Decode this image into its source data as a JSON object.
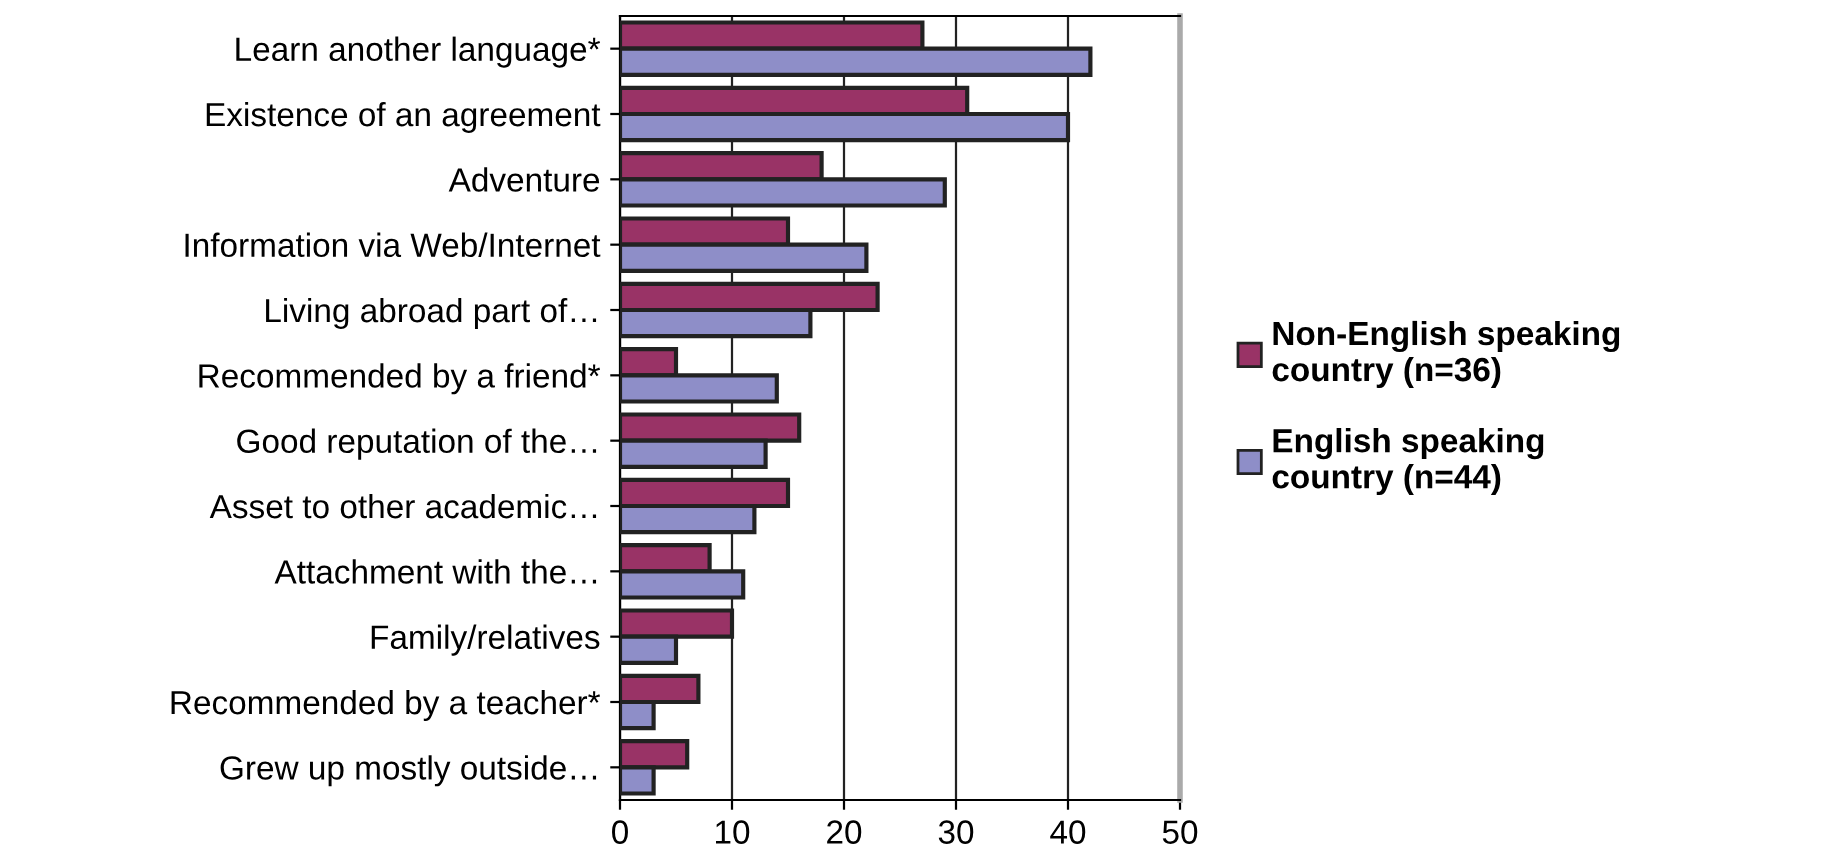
{
  "chart_data": {
    "type": "bar",
    "orientation": "horizontal",
    "categories": [
      "Learn another language*",
      "Existence of an agreement",
      "Adventure",
      "Information via Web/Internet",
      "Living abroad part of…",
      "Recommended by a friend*",
      "Good reputation of the…",
      "Asset to other academic…",
      "Attachment with the…",
      "Family/relatives",
      "Recommended by a teacher*",
      "Grew up mostly outside…"
    ],
    "series": [
      {
        "name": "Non-English speaking country (n=36)",
        "color": "#993366",
        "values": [
          27,
          31,
          18,
          15,
          23,
          5,
          16,
          15,
          8,
          10,
          7,
          6
        ]
      },
      {
        "name": "English speaking country (n=44)",
        "color": "#8e8ec8",
        "values": [
          42,
          40,
          29,
          22,
          17,
          14,
          13,
          12,
          11,
          5,
          3,
          3
        ]
      }
    ],
    "xlim": [
      0,
      50
    ],
    "xticks": [
      0,
      10,
      20,
      30,
      40,
      50
    ],
    "grid": "x",
    "legend": "right"
  }
}
